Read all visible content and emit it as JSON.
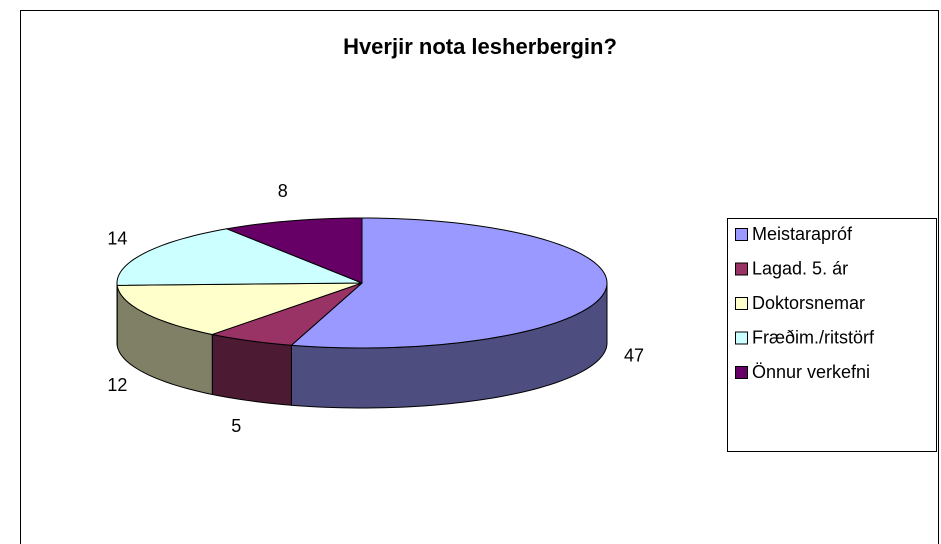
{
  "chart_data": {
    "type": "pie3d",
    "title": "Hverjir nota lesherbergin?",
    "categories": [
      "Meistarapróf",
      "Lagad. 5. ár",
      "Doktorsnemar",
      "Fræðim./ritstörf",
      "Önnur verkefni"
    ],
    "values": [
      47,
      5,
      12,
      14,
      8
    ],
    "colors": [
      "#9999ff",
      "#993366",
      "#ffffcc",
      "#ccffff",
      "#660066"
    ],
    "legend": "right"
  }
}
